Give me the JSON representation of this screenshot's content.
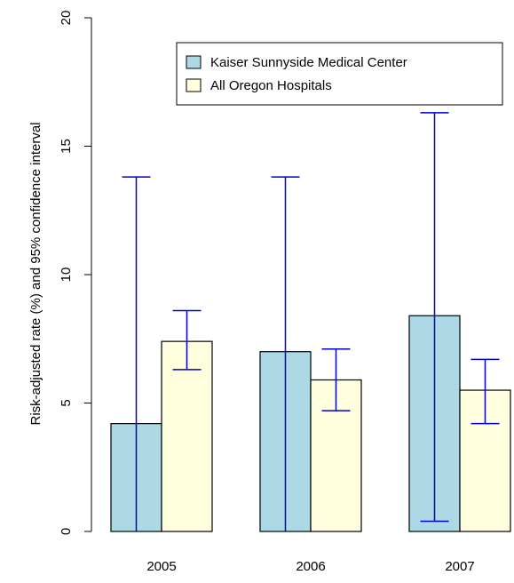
{
  "chart_data": {
    "type": "bar",
    "categories": [
      "2005",
      "2006",
      "2007"
    ],
    "ylabel": "Risk-adjusted rate (%) and 95% confidence interval",
    "xlabel": "",
    "ylim": [
      0,
      20
    ],
    "yticks": [
      0,
      5,
      10,
      15,
      20
    ],
    "grid": false,
    "legend_position": "top-right",
    "series": [
      {
        "name": "Kaiser Sunnyside Medical Center",
        "color": "#add8e6",
        "values": [
          4.2,
          7.0,
          8.4
        ],
        "ci_lower": [
          0,
          0,
          0.4
        ],
        "ci_upper": [
          13.8,
          13.8,
          16.3
        ]
      },
      {
        "name": "All Oregon Hospitals",
        "color": "#ffffe0",
        "values": [
          7.4,
          5.9,
          5.5
        ],
        "ci_lower": [
          6.3,
          4.7,
          4.2
        ],
        "ci_upper": [
          8.6,
          7.1,
          6.7
        ]
      }
    ],
    "error_bar_color": "#0000cd"
  }
}
